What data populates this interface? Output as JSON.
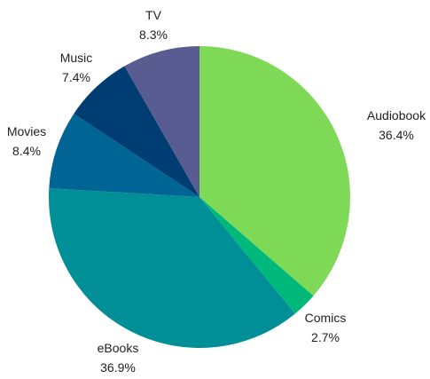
{
  "chart_data": {
    "type": "pie",
    "slices": [
      {
        "label": "Audiobook",
        "value": 36.4,
        "display": "36.4%",
        "color": "#7ed957"
      },
      {
        "label": "Comics",
        "value": 2.7,
        "display": "2.7%",
        "color": "#00b87a"
      },
      {
        "label": "eBooks",
        "value": 36.9,
        "display": "36.9%",
        "color": "#008f96"
      },
      {
        "label": "Movies",
        "value": 8.4,
        "display": "8.4%",
        "color": "#006494"
      },
      {
        "label": "Music",
        "value": 7.4,
        "display": "7.4%",
        "color": "#003d73"
      },
      {
        "label": "TV",
        "value": 8.3,
        "display": "8.3%",
        "color": "#585c91"
      }
    ],
    "start_angle": "12 o'clock",
    "direction": "clockwise",
    "legend": "none"
  }
}
